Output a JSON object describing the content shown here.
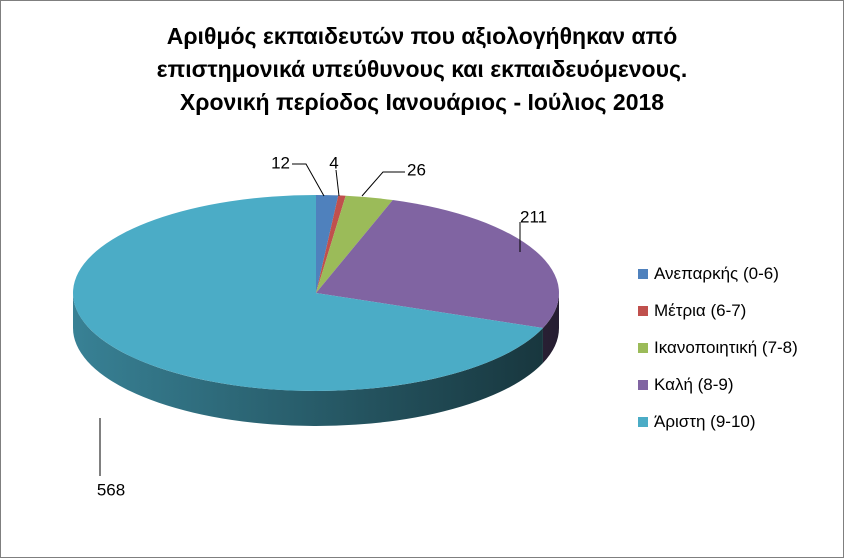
{
  "chart_data": {
    "type": "pie",
    "title_lines": [
      "Αριθμός εκπαιδευτών που αξιολογήθηκαν από",
      "επιστημονικά υπεύθυνους και εκπαιδευόμενους.",
      "Χρονική περίοδος Ιανουάριος - Ιούλιος 2018"
    ],
    "categories": [
      "Ανεπαρκής (0-6)",
      "Μέτρια (6-7)",
      "Ικανοποιητική (7-8)",
      "Καλή (8-9)",
      "Άριστη (9-10)"
    ],
    "values": [
      12,
      4,
      26,
      211,
      568
    ],
    "data_labels": [
      "12",
      "4",
      "26",
      "211",
      "568"
    ],
    "colors": [
      "#4f81bd",
      "#c0504d",
      "#9bbb59",
      "#8064a2",
      "#4bacc6"
    ],
    "legend_position": "right",
    "style": "3d"
  }
}
